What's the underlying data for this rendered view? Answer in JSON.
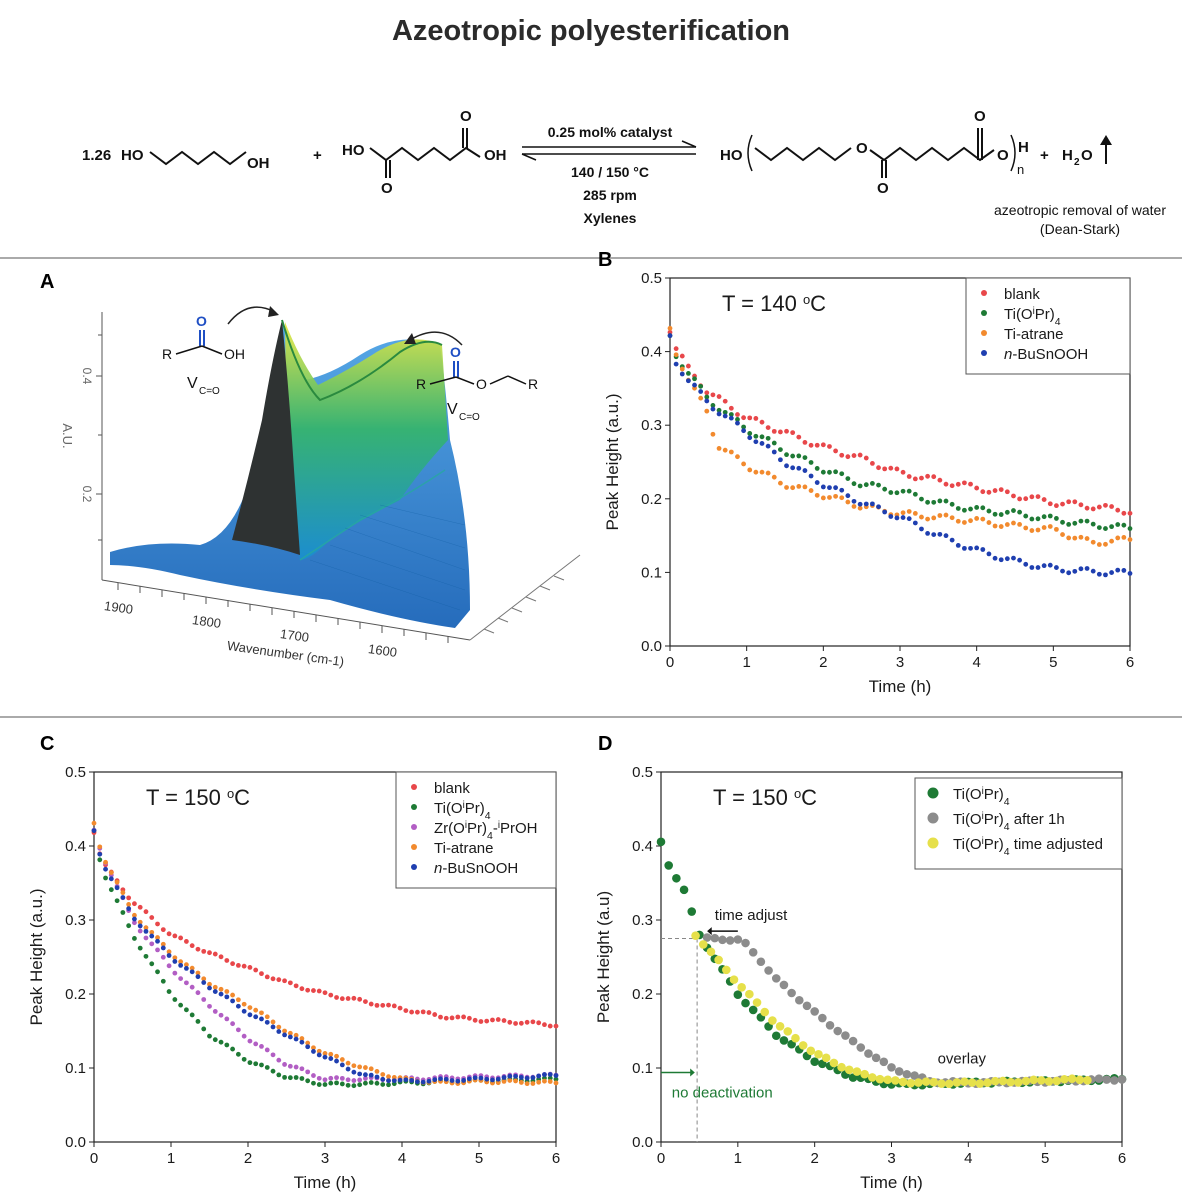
{
  "figure_title": "Azeotropic polyesterification",
  "scheme": {
    "reactant1_coef": "1.26",
    "reactant1_left": "HO",
    "reactant1_right": "OH",
    "plus1": "+",
    "reactant2_left": "HO",
    "reactant2_right": "OH",
    "reactant2_o_top": "O",
    "reactant2_o_bottom": "O",
    "cond_catalyst": "0.25 mol% catalyst",
    "cond_temp": "140 / 150 °C",
    "cond_rpm": "285 rpm",
    "cond_solvent": "Xylenes",
    "product_left": "HO",
    "product_o_mid": "O",
    "product_o_top": "O",
    "product_o_bottom": "O",
    "product_o_end": "O",
    "product_h": "H",
    "product_n": "n",
    "plus2": "+",
    "water_h": "H",
    "water_sub": "2",
    "water_o": "O",
    "note_line1": "azeotropic removal of water",
    "note_line2": "(Dean-Stark)"
  },
  "panel_a": {
    "letter": "A",
    "acid_o": "O",
    "acid_r": "R",
    "acid_oh": "OH",
    "acid_v": "V",
    "acid_vsub": "C=O",
    "ester_o_top": "O",
    "ester_r1": "R",
    "ester_o": "O",
    "ester_r2": "R",
    "ester_v": "V",
    "ester_vsub": "C=O",
    "y_axis_label": "A.U.",
    "y_ticks": [
      "0.4",
      "0.2"
    ],
    "x_axis_label": "Wavenumber (cm-1)",
    "x_ticks": [
      "1900",
      "1800",
      "1700",
      "1600"
    ]
  },
  "chart_data": [
    {
      "panel": "B",
      "type": "scatter",
      "annotation": "T = 140 °C",
      "xlabel": "Time (h)",
      "ylabel": "Peak Height (a.u.)",
      "xlim": [
        0,
        6
      ],
      "ylim": [
        0,
        0.5
      ],
      "xticks": [
        0,
        1,
        2,
        3,
        4,
        5,
        6
      ],
      "yticks": [
        0.0,
        0.1,
        0.2,
        0.3,
        0.4,
        0.5
      ],
      "legend_position": "top-right",
      "series": [
        {
          "name": "blank",
          "color": "#e8474a",
          "model": [
            [
              0,
              0.43
            ],
            [
              0.05,
              0.41
            ],
            [
              0.25,
              0.375
            ],
            [
              0.5,
              0.345
            ],
            [
              1,
              0.31
            ],
            [
              1.5,
              0.29
            ],
            [
              2,
              0.27
            ],
            [
              2.5,
              0.255
            ],
            [
              3,
              0.235
            ],
            [
              3.5,
              0.225
            ],
            [
              4,
              0.215
            ],
            [
              4.5,
              0.205
            ],
            [
              5,
              0.195
            ],
            [
              5.5,
              0.19
            ],
            [
              6,
              0.183
            ]
          ]
        },
        {
          "name": "Ti(OiPr)4",
          "color": "#1e7a35",
          "model": [
            [
              0,
              0.42
            ],
            [
              0.05,
              0.4
            ],
            [
              0.25,
              0.37
            ],
            [
              0.5,
              0.335
            ],
            [
              1,
              0.295
            ],
            [
              1.5,
              0.265
            ],
            [
              2,
              0.24
            ],
            [
              2.5,
              0.22
            ],
            [
              3,
              0.21
            ],
            [
              3.5,
              0.195
            ],
            [
              4,
              0.185
            ],
            [
              4.5,
              0.18
            ],
            [
              5,
              0.172
            ],
            [
              5.5,
              0.165
            ],
            [
              6,
              0.16
            ]
          ]
        },
        {
          "name": "Ti-atrane",
          "color": "#f28a2e",
          "model": [
            [
              0,
              0.43
            ],
            [
              0.05,
              0.405
            ],
            [
              0.25,
              0.36
            ],
            [
              0.5,
              0.315
            ],
            [
              0.6,
              0.275
            ],
            [
              1,
              0.245
            ],
            [
              1.5,
              0.22
            ],
            [
              2,
              0.205
            ],
            [
              2.5,
              0.19
            ],
            [
              3,
              0.18
            ],
            [
              3.5,
              0.175
            ],
            [
              4,
              0.17
            ],
            [
              4.5,
              0.163
            ],
            [
              5,
              0.158
            ],
            [
              5.5,
              0.14
            ],
            [
              6,
              0.145
            ]
          ]
        },
        {
          "name": "n-BuSnOOH",
          "color": "#1f3fb0",
          "model": [
            [
              0,
              0.42
            ],
            [
              0.05,
              0.39
            ],
            [
              0.25,
              0.36
            ],
            [
              0.5,
              0.33
            ],
            [
              1,
              0.29
            ],
            [
              1.5,
              0.25
            ],
            [
              2,
              0.22
            ],
            [
              2.5,
              0.195
            ],
            [
              3,
              0.175
            ],
            [
              3.5,
              0.15
            ],
            [
              4,
              0.13
            ],
            [
              4.5,
              0.115
            ],
            [
              5,
              0.105
            ],
            [
              5.5,
              0.101
            ],
            [
              6,
              0.099
            ]
          ]
        }
      ]
    },
    {
      "panel": "C",
      "type": "scatter",
      "annotation": "T = 150 °C",
      "xlabel": "Time (h)",
      "ylabel": "Peak Height (a.u.)",
      "xlim": [
        0,
        6
      ],
      "ylim": [
        0,
        0.5
      ],
      "xticks": [
        0,
        1,
        2,
        3,
        4,
        5,
        6
      ],
      "yticks": [
        0.0,
        0.1,
        0.2,
        0.3,
        0.4,
        0.5
      ],
      "legend_position": "top-right",
      "series": [
        {
          "name": "blank",
          "color": "#e8474a",
          "model": [
            [
              0,
              0.42
            ],
            [
              0.1,
              0.38
            ],
            [
              0.5,
              0.325
            ],
            [
              1,
              0.28
            ],
            [
              1.5,
              0.255
            ],
            [
              2,
              0.235
            ],
            [
              2.5,
              0.215
            ],
            [
              3,
              0.2
            ],
            [
              3.5,
              0.19
            ],
            [
              4,
              0.18
            ],
            [
              4.5,
              0.17
            ],
            [
              5,
              0.165
            ],
            [
              5.5,
              0.162
            ],
            [
              6,
              0.158
            ]
          ]
        },
        {
          "name": "Ti(OiPr)4",
          "color": "#1e7a35",
          "model": [
            [
              0,
              0.42
            ],
            [
              0.1,
              0.37
            ],
            [
              0.5,
              0.28
            ],
            [
              1,
              0.2
            ],
            [
              1.5,
              0.145
            ],
            [
              2,
              0.11
            ],
            [
              2.5,
              0.088
            ],
            [
              3,
              0.078
            ],
            [
              3.5,
              0.078
            ],
            [
              4,
              0.08
            ],
            [
              5,
              0.082
            ],
            [
              6,
              0.085
            ]
          ]
        },
        {
          "name": "Zr(OiPr)4-iPrOH",
          "color": "#b25ec4",
          "model": [
            [
              0,
              0.42
            ],
            [
              0.1,
              0.39
            ],
            [
              0.5,
              0.3
            ],
            [
              1,
              0.235
            ],
            [
              1.5,
              0.185
            ],
            [
              2,
              0.14
            ],
            [
              2.5,
              0.105
            ],
            [
              3,
              0.085
            ],
            [
              3.5,
              0.085
            ],
            [
              4,
              0.085
            ],
            [
              5,
              0.088
            ],
            [
              6,
              0.09
            ]
          ]
        },
        {
          "name": "Ti-atrane",
          "color": "#f28a2e",
          "model": [
            [
              0,
              0.43
            ],
            [
              0.1,
              0.39
            ],
            [
              0.5,
              0.31
            ],
            [
              1,
              0.255
            ],
            [
              1.5,
              0.215
            ],
            [
              2,
              0.185
            ],
            [
              2.5,
              0.15
            ],
            [
              3,
              0.12
            ],
            [
              3.5,
              0.1
            ],
            [
              4,
              0.085
            ],
            [
              4.5,
              0.08
            ],
            [
              5,
              0.082
            ],
            [
              6,
              0.08
            ]
          ]
        },
        {
          "name": "n-BuSnOOH",
          "color": "#1f3fb0",
          "model": [
            [
              0,
              0.42
            ],
            [
              0.1,
              0.38
            ],
            [
              0.5,
              0.305
            ],
            [
              1,
              0.25
            ],
            [
              1.5,
              0.21
            ],
            [
              2,
              0.175
            ],
            [
              2.5,
              0.145
            ],
            [
              3,
              0.115
            ],
            [
              3.5,
              0.09
            ],
            [
              4,
              0.082
            ],
            [
              5,
              0.085
            ],
            [
              6,
              0.09
            ]
          ]
        }
      ]
    },
    {
      "panel": "D",
      "type": "scatter",
      "annotation": "T = 150 °C",
      "xlabel": "Time (h)",
      "ylabel": "Peak Height (a.u)",
      "xlim": [
        0,
        6
      ],
      "ylim": [
        0,
        0.5
      ],
      "xticks": [
        0,
        1,
        2,
        3,
        4,
        5,
        6
      ],
      "yticks": [
        0.0,
        0.1,
        0.2,
        0.3,
        0.4,
        0.5
      ],
      "legend_position": "top-right",
      "annotations": {
        "time_adjust": "time adjust",
        "overlay": "overlay",
        "no_deactivation": "no deactivation"
      },
      "series": [
        {
          "name": "Ti(OiPr)4",
          "color": "#1e7a35",
          "model": [
            [
              0,
              0.405
            ],
            [
              0.1,
              0.375
            ],
            [
              0.3,
              0.34
            ],
            [
              0.5,
              0.28
            ],
            [
              1,
              0.2
            ],
            [
              1.5,
              0.145
            ],
            [
              2,
              0.11
            ],
            [
              2.5,
              0.088
            ],
            [
              3,
              0.078
            ],
            [
              3.5,
              0.078
            ],
            [
              4,
              0.08
            ],
            [
              5,
              0.082
            ],
            [
              6,
              0.085
            ]
          ]
        },
        {
          "name": "Ti(OiPr)4 after 1h",
          "color": "#8c8c8c",
          "model": [
            [
              0.6,
              0.275
            ],
            [
              1.05,
              0.273
            ],
            [
              1.3,
              0.245
            ],
            [
              1.5,
              0.22
            ],
            [
              2,
              0.175
            ],
            [
              2.5,
              0.135
            ],
            [
              3,
              0.1
            ],
            [
              3.5,
              0.082
            ],
            [
              4,
              0.08
            ],
            [
              5,
              0.082
            ],
            [
              6,
              0.085
            ]
          ]
        },
        {
          "name": "Ti(OiPr)4 time adjusted",
          "color": "#e6e04a",
          "model": [
            [
              0.45,
              0.28
            ],
            [
              1,
              0.215
            ],
            [
              1.5,
              0.16
            ],
            [
              2,
              0.12
            ],
            [
              2.5,
              0.095
            ],
            [
              3,
              0.082
            ],
            [
              3.5,
              0.08
            ],
            [
              4,
              0.08
            ],
            [
              5,
              0.083
            ],
            [
              5.6,
              0.085
            ]
          ]
        }
      ]
    }
  ]
}
